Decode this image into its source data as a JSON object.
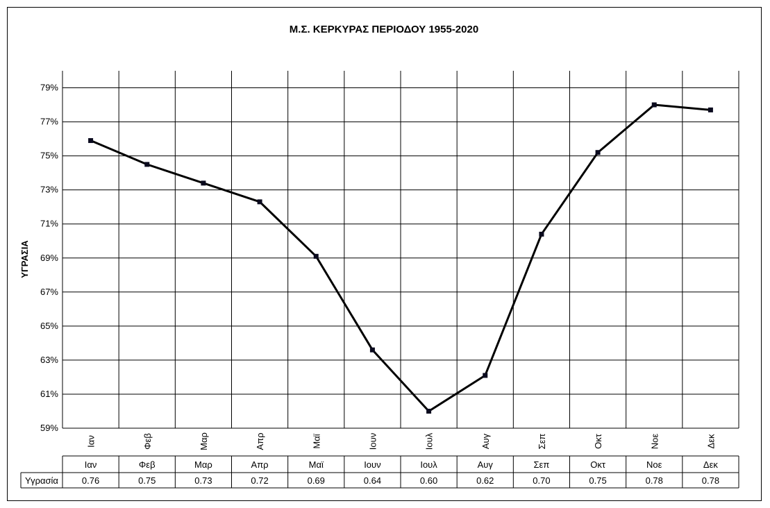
{
  "chart_data": {
    "type": "line",
    "title": "Μ.Σ. ΚΕΡΚΥΡΑΣ ΠΕΡΙΟΔΟΥ 1955-2020",
    "ylabel": "ΥΓΡΑΣΙΑ",
    "xlabel": "",
    "categories": [
      "Ιαν",
      "Φεβ",
      "Μαρ",
      "Απρ",
      "Μαϊ",
      "Ιουν",
      "Ιουλ",
      "Αυγ",
      "Σεπ",
      "Οκτ",
      "Νοε",
      "Δεκ"
    ],
    "y_tick_labels": [
      "59%",
      "61%",
      "63%",
      "65%",
      "67%",
      "69%",
      "71%",
      "73%",
      "75%",
      "77%",
      "79%"
    ],
    "ylim": [
      0.59,
      0.8
    ],
    "grid": true,
    "series": [
      {
        "name": "Υγρασία",
        "values": [
          0.759,
          0.745,
          0.734,
          0.723,
          0.691,
          0.636,
          0.6,
          0.621,
          0.704,
          0.752,
          0.78,
          0.777
        ],
        "display_values": [
          "0.76",
          "0.75",
          "0.73",
          "0.72",
          "0.69",
          "0.64",
          "0.60",
          "0.62",
          "0.70",
          "0.75",
          "0.78",
          "0.78"
        ],
        "color": "#000000"
      }
    ]
  }
}
